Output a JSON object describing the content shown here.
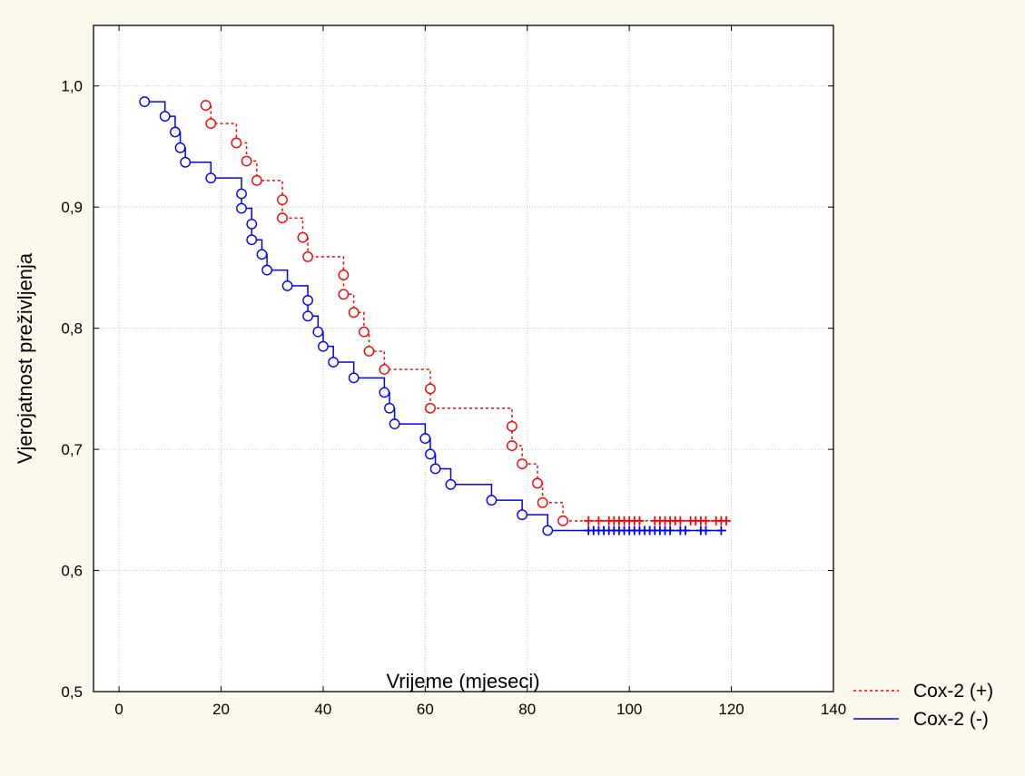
{
  "chart_data": {
    "type": "line",
    "subtype": "kaplan-meier survival curve",
    "title": "",
    "xlabel": "Vrijeme (mjeseci)",
    "ylabel": "Vjerojatnost preživljenja",
    "xlim": [
      -5,
      140
    ],
    "ylim": [
      0.5,
      1.05
    ],
    "xticks": [
      0,
      20,
      40,
      60,
      80,
      100,
      120,
      140
    ],
    "yticks": [
      0.5,
      0.6,
      0.7,
      0.8,
      0.9,
      1.0
    ],
    "xtick_labels": [
      "0",
      "20",
      "40",
      "60",
      "80",
      "100",
      "120",
      "140"
    ],
    "ytick_labels": [
      "0,5",
      "0,6",
      "0,7",
      "0,8",
      "0,9",
      "1,0"
    ],
    "grid": true,
    "legend_position": "bottom-right outside",
    "series": [
      {
        "name": "Cox-2 (+)",
        "color": "#ff0000",
        "line_style": "dotted",
        "events": [
          [
            17,
            0.984
          ],
          [
            18,
            0.969
          ],
          [
            23,
            0.953
          ],
          [
            25,
            0.938
          ],
          [
            27,
            0.922
          ],
          [
            32,
            0.906
          ],
          [
            32,
            0.891
          ],
          [
            36,
            0.875
          ],
          [
            37,
            0.859
          ],
          [
            44,
            0.844
          ],
          [
            44,
            0.828
          ],
          [
            46,
            0.813
          ],
          [
            48,
            0.797
          ],
          [
            49,
            0.781
          ],
          [
            52,
            0.766
          ],
          [
            61,
            0.75
          ],
          [
            61,
            0.734
          ],
          [
            77,
            0.719
          ],
          [
            77,
            0.703
          ],
          [
            79,
            0.688
          ],
          [
            82,
            0.672
          ],
          [
            83,
            0.656
          ],
          [
            87,
            0.641
          ]
        ],
        "censored_times": [
          92,
          94,
          96,
          97,
          98,
          99,
          100,
          101,
          102,
          105,
          106,
          107,
          108,
          109,
          110,
          112,
          113,
          114,
          115,
          117,
          118,
          119
        ],
        "censored_level": 0.641,
        "end_time": 120
      },
      {
        "name": "Cox-2 (-)",
        "color": "#0000ff",
        "line_style": "solid",
        "events": [
          [
            5,
            0.987
          ],
          [
            9,
            0.975
          ],
          [
            11,
            0.962
          ],
          [
            12,
            0.949
          ],
          [
            13,
            0.937
          ],
          [
            18,
            0.924
          ],
          [
            24,
            0.911
          ],
          [
            24,
            0.899
          ],
          [
            26,
            0.886
          ],
          [
            26,
            0.873
          ],
          [
            28,
            0.861
          ],
          [
            29,
            0.848
          ],
          [
            33,
            0.835
          ],
          [
            37,
            0.823
          ],
          [
            37,
            0.81
          ],
          [
            39,
            0.797
          ],
          [
            40,
            0.785
          ],
          [
            42,
            0.772
          ],
          [
            46,
            0.759
          ],
          [
            52,
            0.747
          ],
          [
            53,
            0.734
          ],
          [
            54,
            0.721
          ],
          [
            60,
            0.709
          ],
          [
            61,
            0.696
          ],
          [
            62,
            0.684
          ],
          [
            65,
            0.671
          ],
          [
            73,
            0.658
          ],
          [
            79,
            0.646
          ],
          [
            84,
            0.633
          ]
        ],
        "censored_times": [
          92,
          93,
          94,
          95,
          96,
          97,
          98,
          99,
          100,
          101,
          102,
          103,
          104,
          105,
          106,
          107,
          108,
          110,
          111,
          114,
          115,
          118
        ],
        "censored_level": 0.633,
        "end_time": 119
      }
    ]
  }
}
